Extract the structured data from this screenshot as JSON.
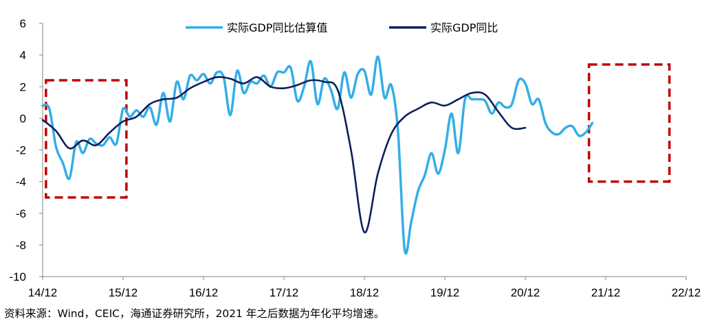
{
  "chart_data": {
    "type": "line",
    "title": "",
    "xlabel": "",
    "ylabel": "",
    "ylim": [
      -10,
      6
    ],
    "yticks": [
      -10,
      -8,
      -6,
      -4,
      -2,
      0,
      2,
      4,
      6
    ],
    "xlim": [
      0,
      96
    ],
    "x_tick_labels": [
      "14/12",
      "15/12",
      "16/12",
      "17/12",
      "18/12",
      "19/12",
      "20/12",
      "21/12",
      "22/12"
    ],
    "x_tick_positions": [
      0,
      12,
      24,
      36,
      48,
      60,
      72,
      84,
      96
    ],
    "legend_position": "top-center",
    "grid": false,
    "series": [
      {
        "name": "实际GDP同比估算值",
        "color": "#33AEE6",
        "x": [
          0,
          1,
          2,
          3,
          4,
          5,
          6,
          7,
          8,
          9,
          10,
          11,
          12,
          13,
          14,
          15,
          16,
          17,
          18,
          19,
          20,
          21,
          22,
          23,
          24,
          25,
          26,
          27,
          28,
          29,
          30,
          31,
          32,
          33,
          34,
          35,
          36,
          37,
          38,
          39,
          40,
          41,
          42,
          43,
          44,
          45,
          46,
          47,
          48,
          49,
          50,
          51,
          52,
          53,
          54,
          55,
          56,
          57,
          58,
          59,
          60,
          61,
          62,
          63,
          64,
          65,
          66,
          67,
          68,
          69,
          70,
          71,
          72,
          73,
          74,
          75,
          76,
          77,
          78,
          79,
          80,
          81,
          82,
          83,
          84,
          85,
          86,
          87,
          88,
          89,
          90,
          91,
          92
        ],
        "y": [
          0.8,
          0.6,
          -1.8,
          -2.8,
          -3.8,
          -1.5,
          -2.2,
          -1.3,
          -1.6,
          -1.7,
          -1.2,
          -1.6,
          0.6,
          0.1,
          0.5,
          0.1,
          0.7,
          -0.4,
          1.6,
          -0.2,
          2.3,
          1.2,
          2.7,
          2.4,
          2.8,
          2.2,
          2.9,
          2.6,
          0.2,
          3.0,
          1.6,
          2.3,
          2.2,
          2.7,
          2.0,
          2.9,
          2.9,
          3.2,
          1.1,
          2.0,
          3.6,
          0.9,
          2.5,
          1.8,
          0.6,
          2.9,
          1.3,
          2.8,
          3.0,
          1.5,
          3.9,
          1.3,
          2.1,
          -0.8,
          -8.3,
          -6.5,
          -4.6,
          -3.6,
          -2.2,
          -3.5,
          -2.0,
          0.3,
          -2.2,
          1.2,
          1.2,
          1.2,
          1.1,
          0.3,
          1.0,
          0.7,
          0.9,
          2.4,
          2.2,
          0.9,
          1.2,
          -0.3,
          -0.9,
          -1.0,
          -0.6,
          -0.5,
          -1.1,
          -0.9,
          -0.3,
          null,
          null,
          null,
          null,
          null,
          null,
          null,
          null,
          null,
          null
        ]
      },
      {
        "name": "实际GDP同比",
        "color": "#0F1D5A",
        "x": [
          0,
          2,
          4,
          6,
          8,
          10,
          12,
          14,
          16,
          18,
          20,
          22,
          24,
          26,
          28,
          30,
          32,
          34,
          36,
          38,
          40,
          42,
          44,
          46,
          48,
          50,
          52,
          54,
          56,
          58,
          60,
          62,
          64,
          66,
          68,
          70,
          72,
          74,
          76,
          78,
          80,
          82,
          84,
          86,
          88,
          90,
          92
        ],
        "y": [
          -0.1,
          -0.8,
          -1.9,
          -1.4,
          -1.7,
          -0.9,
          -0.2,
          0.1,
          0.9,
          1.2,
          1.3,
          1.9,
          2.3,
          2.6,
          2.5,
          2.2,
          2.6,
          2.0,
          1.9,
          2.1,
          2.4,
          2.3,
          1.8,
          -2.0,
          -7.2,
          -3.5,
          -1.0,
          0.1,
          0.6,
          1.0,
          0.8,
          1.2,
          1.6,
          1.5,
          0.4,
          -0.6,
          -0.6,
          null,
          null,
          null,
          null,
          null,
          null,
          null,
          null,
          null,
          null
        ]
      }
    ],
    "annotations": [
      {
        "type": "dashed-box",
        "color": "#C00000",
        "x_range": [
          0.5,
          12.5
        ],
        "y_range": [
          -5.0,
          2.4
        ]
      },
      {
        "type": "dashed-box",
        "color": "#C00000",
        "x_range": [
          81.5,
          93.5
        ],
        "y_range": [
          -4.0,
          3.4
        ]
      }
    ]
  },
  "source_note": "资料来源：Wind，CEIC，海通证券研究所，2021 年之后数据为年化平均增速。"
}
